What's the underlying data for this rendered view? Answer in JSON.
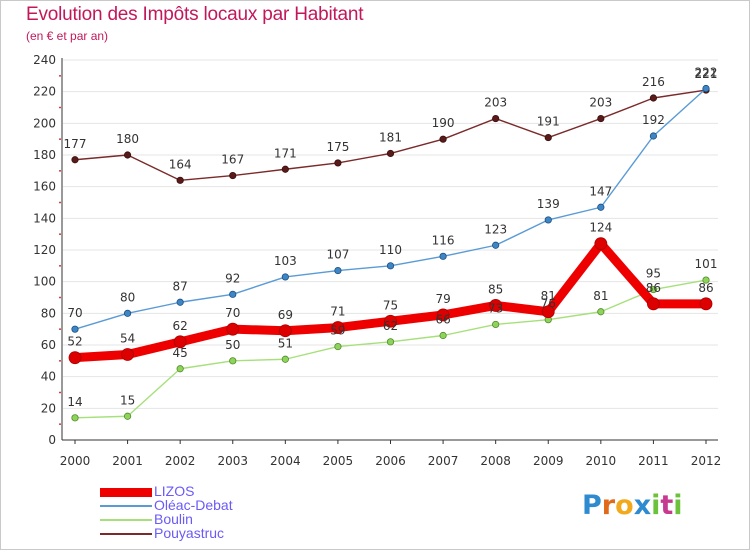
{
  "header": {
    "title": "Evolution des Impôts locaux par Habitant",
    "subtitle": "(en € et par an)"
  },
  "logo": {
    "letters": [
      "P",
      "r",
      "o",
      "x",
      "i",
      "t",
      "i"
    ],
    "colors": [
      "#2e8bd0",
      "#e06a1a",
      "#f2a91c",
      "#2e8bd0",
      "#6cc23a",
      "#c63a8f",
      "#6cc23a"
    ]
  },
  "chart_data": {
    "type": "line",
    "title": "Evolution des Impôts locaux par Habitant",
    "subtitle": "(en € et par an)",
    "xlabel": "",
    "ylabel": "",
    "x": [
      "2000",
      "2001",
      "2002",
      "2003",
      "2004",
      "2005",
      "2006",
      "2007",
      "2008",
      "2009",
      "2010",
      "2011",
      "2012"
    ],
    "ylim": [
      0,
      240
    ],
    "yticks": [
      0,
      20,
      40,
      60,
      80,
      100,
      120,
      140,
      160,
      180,
      200,
      220,
      240
    ],
    "grid": "horizontal",
    "legend_position": "bottom-left",
    "series": [
      {
        "name": "LIZOS",
        "color": "#ee0000",
        "values": [
          52,
          54,
          62,
          70,
          69,
          71,
          75,
          79,
          85,
          81,
          124,
          86,
          86
        ]
      },
      {
        "name": "Oléac-Debat",
        "color": "#5a9bd5",
        "values": [
          70,
          80,
          87,
          92,
          103,
          107,
          110,
          116,
          123,
          139,
          147,
          192,
          222
        ]
      },
      {
        "name": "Boulin",
        "color": "#a6e07a",
        "values": [
          14,
          15,
          45,
          50,
          51,
          59,
          62,
          66,
          73,
          76,
          81,
          95,
          101
        ]
      },
      {
        "name": "Pouyastruc",
        "color": "#7a2a2a",
        "values": [
          177,
          180,
          164,
          167,
          171,
          175,
          181,
          190,
          203,
          191,
          203,
          216,
          221
        ]
      }
    ]
  }
}
